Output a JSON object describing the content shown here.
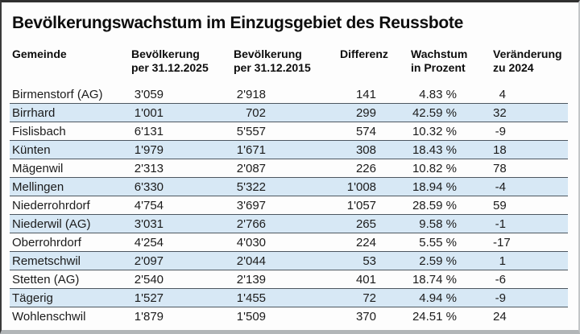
{
  "title": "Bevölkerungswachstum im Einzugsgebiet des Reussbote",
  "header": {
    "columns": [
      {
        "line1": "Gemeinde",
        "line2": ""
      },
      {
        "line1": "Bevölkerung",
        "line2": "per 31.12.2025"
      },
      {
        "line1": "Bevölkerung",
        "line2": "per 31.12.2015"
      },
      {
        "line1": "Differenz",
        "line2": ""
      },
      {
        "line1": "Wachstum",
        "line2": "in Prozent"
      },
      {
        "line1": "Veränderung",
        "line2": "zu 2024"
      }
    ]
  },
  "chart_data": {
    "type": "table",
    "title": "Bevölkerungswachstum im Einzugsgebiet des Reussbote",
    "columns": [
      "Gemeinde",
      "Bevölkerung per 31.12.2025",
      "Bevölkerung per 31.12.2015",
      "Differenz",
      "Wachstum in Prozent",
      "Veränderung zu 2024"
    ],
    "rows": [
      [
        "Birmenstorf (AG)",
        "3'059",
        "2'918",
        "141",
        "4.83 %",
        "4"
      ],
      [
        "Birrhard",
        "1'001",
        "702",
        "299",
        "42.59 %",
        "32"
      ],
      [
        "Fislisbach",
        "6'131",
        "5'557",
        "574",
        "10.32 %",
        "-9"
      ],
      [
        "Künten",
        "1'979",
        "1'671",
        "308",
        "18.43 %",
        "18"
      ],
      [
        "Mägenwil",
        "2'313",
        "2'087",
        "226",
        "10.82 %",
        "78"
      ],
      [
        "Mellingen",
        "6'330",
        "5'322",
        "1'008",
        "18.94 %",
        "-4"
      ],
      [
        "Niederrohrdorf",
        "4'754",
        "3'697",
        "1'057",
        "28.59 %",
        "59"
      ],
      [
        "Niederwil (AG)",
        "3'031",
        "2'766",
        "265",
        "9.58 %",
        "-1"
      ],
      [
        "Oberrohrdorf",
        "4'254",
        "4'030",
        "224",
        "5.55 %",
        "-17"
      ],
      [
        "Remetschwil",
        "2'097",
        "2'044",
        "53",
        "2.59 %",
        "1"
      ],
      [
        "Stetten (AG)",
        "2'540",
        "2'139",
        "401",
        "18.74 %",
        "-6"
      ],
      [
        "Tägerig",
        "1'527",
        "1'455",
        "72",
        "4.94 %",
        "-9"
      ],
      [
        "Wohlenschwil",
        "1'879",
        "1'509",
        "370",
        "24.51 %",
        "24"
      ]
    ],
    "layout": {
      "striped_rows": "even",
      "row_separator_lines": true,
      "grid": "horizontal-only"
    }
  },
  "colors": {
    "row_highlight": "#d7e8f5",
    "row_border": "#4d5760",
    "frame_border_dark": "#3a3a3a",
    "text": "#1b1b1b"
  }
}
